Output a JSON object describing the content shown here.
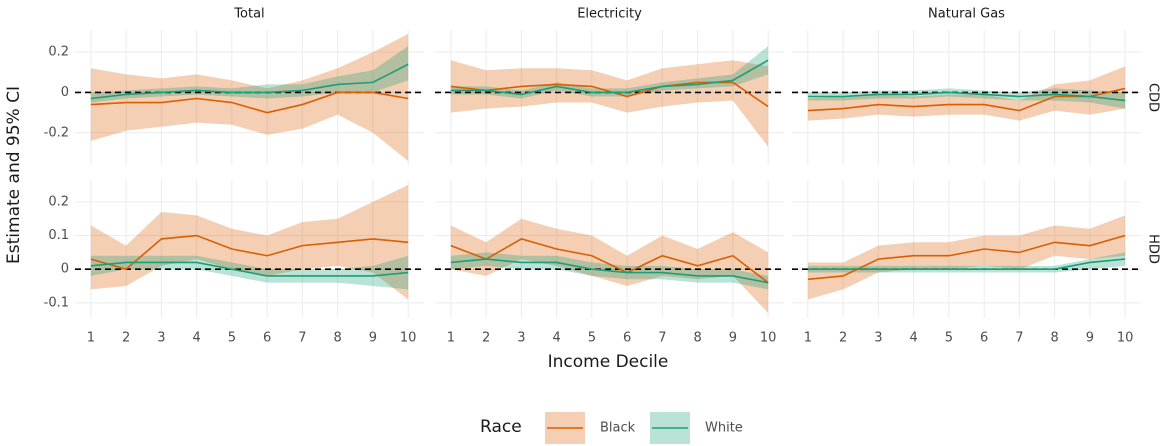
{
  "chart_data": {
    "type": "line",
    "x_label": "Income Decile",
    "y_label": "Estimate and 95% CI",
    "legend_title": "Race",
    "columns": [
      "Total",
      "Electricity",
      "Natural Gas"
    ],
    "rows": [
      {
        "label": "CDD",
        "ylim": [
          -0.36,
          0.31
        ],
        "yticks": [
          -0.2,
          0.0,
          0.2
        ]
      },
      {
        "label": "HDD",
        "ylim": [
          -0.145,
          0.265
        ],
        "yticks": [
          -0.1,
          0.0,
          0.1,
          0.2
        ]
      }
    ],
    "x": [
      1,
      2,
      3,
      4,
      5,
      6,
      7,
      8,
      9,
      10
    ],
    "xlim": [
      0.55,
      10.45
    ],
    "xticks": [
      1,
      2,
      3,
      4,
      5,
      6,
      7,
      8,
      9,
      10
    ],
    "grid": true,
    "hline": 0,
    "series": [
      {
        "name": "Black",
        "color": "#d95f02"
      },
      {
        "name": "White",
        "color": "#1b9e77"
      }
    ],
    "panels": [
      {
        "series": [
          {
            "values": [
              -0.06,
              -0.05,
              -0.05,
              -0.03,
              -0.05,
              -0.1,
              -0.06,
              0.0,
              0.0,
              -0.03
            ],
            "lower": [
              -0.24,
              -0.19,
              -0.17,
              -0.15,
              -0.16,
              -0.21,
              -0.18,
              -0.11,
              -0.2,
              -0.34
            ],
            "upper": [
              0.12,
              0.09,
              0.07,
              0.09,
              0.06,
              0.02,
              0.06,
              0.12,
              0.2,
              0.29
            ]
          },
          {
            "values": [
              -0.03,
              -0.01,
              0.0,
              0.01,
              0.0,
              0.0,
              0.01,
              0.04,
              0.05,
              0.14
            ],
            "lower": [
              -0.05,
              -0.03,
              -0.02,
              -0.01,
              -0.02,
              -0.03,
              -0.02,
              0.0,
              0.0,
              0.06
            ],
            "upper": [
              0.0,
              0.01,
              0.02,
              0.03,
              0.02,
              0.04,
              0.04,
              0.08,
              0.11,
              0.23
            ]
          }
        ]
      },
      {
        "series": [
          {
            "values": [
              0.03,
              0.01,
              0.03,
              0.04,
              0.03,
              -0.02,
              0.03,
              0.05,
              0.05,
              -0.07
            ],
            "lower": [
              -0.1,
              -0.08,
              -0.07,
              -0.05,
              -0.05,
              -0.1,
              -0.07,
              -0.05,
              -0.04,
              -0.27
            ],
            "upper": [
              0.16,
              0.11,
              0.12,
              0.12,
              0.11,
              0.06,
              0.12,
              0.14,
              0.16,
              0.13
            ]
          },
          {
            "values": [
              0.01,
              0.01,
              -0.01,
              0.03,
              0.0,
              0.0,
              0.03,
              0.04,
              0.06,
              0.16
            ],
            "lower": [
              -0.01,
              -0.01,
              -0.03,
              0.01,
              -0.02,
              -0.02,
              0.01,
              0.02,
              0.03,
              0.09
            ],
            "upper": [
              0.03,
              0.03,
              0.01,
              0.05,
              0.02,
              0.02,
              0.05,
              0.07,
              0.09,
              0.23
            ]
          }
        ]
      },
      {
        "series": [
          {
            "values": [
              -0.09,
              -0.08,
              -0.06,
              -0.07,
              -0.06,
              -0.06,
              -0.09,
              -0.02,
              -0.02,
              0.02
            ],
            "lower": [
              -0.14,
              -0.13,
              -0.11,
              -0.12,
              -0.11,
              -0.11,
              -0.14,
              -0.09,
              -0.11,
              -0.08
            ],
            "upper": [
              -0.03,
              -0.02,
              -0.01,
              -0.02,
              -0.01,
              -0.01,
              -0.04,
              0.04,
              0.06,
              0.13
            ]
          },
          {
            "values": [
              -0.02,
              -0.02,
              -0.01,
              -0.01,
              0.0,
              -0.01,
              -0.02,
              -0.01,
              -0.02,
              -0.04
            ],
            "lower": [
              -0.04,
              -0.04,
              -0.03,
              -0.03,
              -0.02,
              -0.03,
              -0.04,
              -0.04,
              -0.05,
              -0.08
            ],
            "upper": [
              0.0,
              0.0,
              0.01,
              0.01,
              0.02,
              0.01,
              0.0,
              0.02,
              0.01,
              0.0
            ]
          }
        ]
      },
      {
        "series": [
          {
            "values": [
              0.03,
              0.0,
              0.09,
              0.1,
              0.06,
              0.04,
              0.07,
              0.08,
              0.09,
              0.08
            ],
            "lower": [
              -0.06,
              -0.05,
              0.01,
              0.03,
              0.0,
              -0.02,
              0.0,
              0.01,
              -0.01,
              -0.09
            ],
            "upper": [
              0.13,
              0.07,
              0.17,
              0.16,
              0.12,
              0.1,
              0.14,
              0.15,
              0.2,
              0.25
            ]
          },
          {
            "values": [
              0.01,
              0.02,
              0.02,
              0.02,
              0.0,
              -0.02,
              -0.02,
              -0.02,
              -0.02,
              -0.01
            ],
            "lower": [
              -0.02,
              0.0,
              0.0,
              0.0,
              -0.02,
              -0.04,
              -0.04,
              -0.04,
              -0.05,
              -0.06
            ],
            "upper": [
              0.04,
              0.04,
              0.04,
              0.04,
              0.02,
              0.0,
              0.0,
              0.0,
              0.01,
              0.04
            ]
          }
        ]
      },
      {
        "series": [
          {
            "values": [
              0.07,
              0.03,
              0.09,
              0.06,
              0.04,
              -0.01,
              0.04,
              0.01,
              0.04,
              -0.04
            ],
            "lower": [
              0.0,
              -0.02,
              0.03,
              0.01,
              -0.02,
              -0.05,
              -0.02,
              -0.03,
              -0.02,
              -0.13
            ],
            "upper": [
              0.13,
              0.08,
              0.15,
              0.12,
              0.1,
              0.04,
              0.1,
              0.06,
              0.11,
              0.05
            ]
          },
          {
            "values": [
              0.02,
              0.03,
              0.02,
              0.02,
              0.0,
              -0.01,
              -0.01,
              -0.02,
              -0.02,
              -0.04
            ],
            "lower": [
              0.0,
              0.01,
              0.0,
              0.0,
              -0.02,
              -0.03,
              -0.03,
              -0.04,
              -0.04,
              -0.06
            ],
            "upper": [
              0.04,
              0.05,
              0.04,
              0.04,
              0.02,
              0.01,
              0.01,
              0.0,
              0.0,
              -0.02
            ]
          }
        ]
      },
      {
        "series": [
          {
            "values": [
              -0.03,
              -0.02,
              0.03,
              0.04,
              0.04,
              0.06,
              0.05,
              0.08,
              0.07,
              0.1
            ],
            "lower": [
              -0.09,
              -0.06,
              -0.01,
              0.0,
              0.0,
              0.01,
              0.0,
              0.04,
              0.03,
              0.04
            ],
            "upper": [
              0.02,
              0.02,
              0.07,
              0.08,
              0.08,
              0.1,
              0.1,
              0.13,
              0.12,
              0.16
            ]
          },
          {
            "values": [
              0.0,
              0.0,
              0.0,
              0.0,
              0.0,
              0.0,
              0.0,
              0.0,
              0.02,
              0.03
            ],
            "lower": [
              -0.01,
              -0.01,
              -0.01,
              -0.01,
              -0.01,
              -0.01,
              -0.01,
              -0.01,
              0.0,
              0.01
            ],
            "upper": [
              0.01,
              0.01,
              0.01,
              0.01,
              0.01,
              0.01,
              0.01,
              0.01,
              0.03,
              0.05
            ]
          }
        ]
      }
    ]
  }
}
